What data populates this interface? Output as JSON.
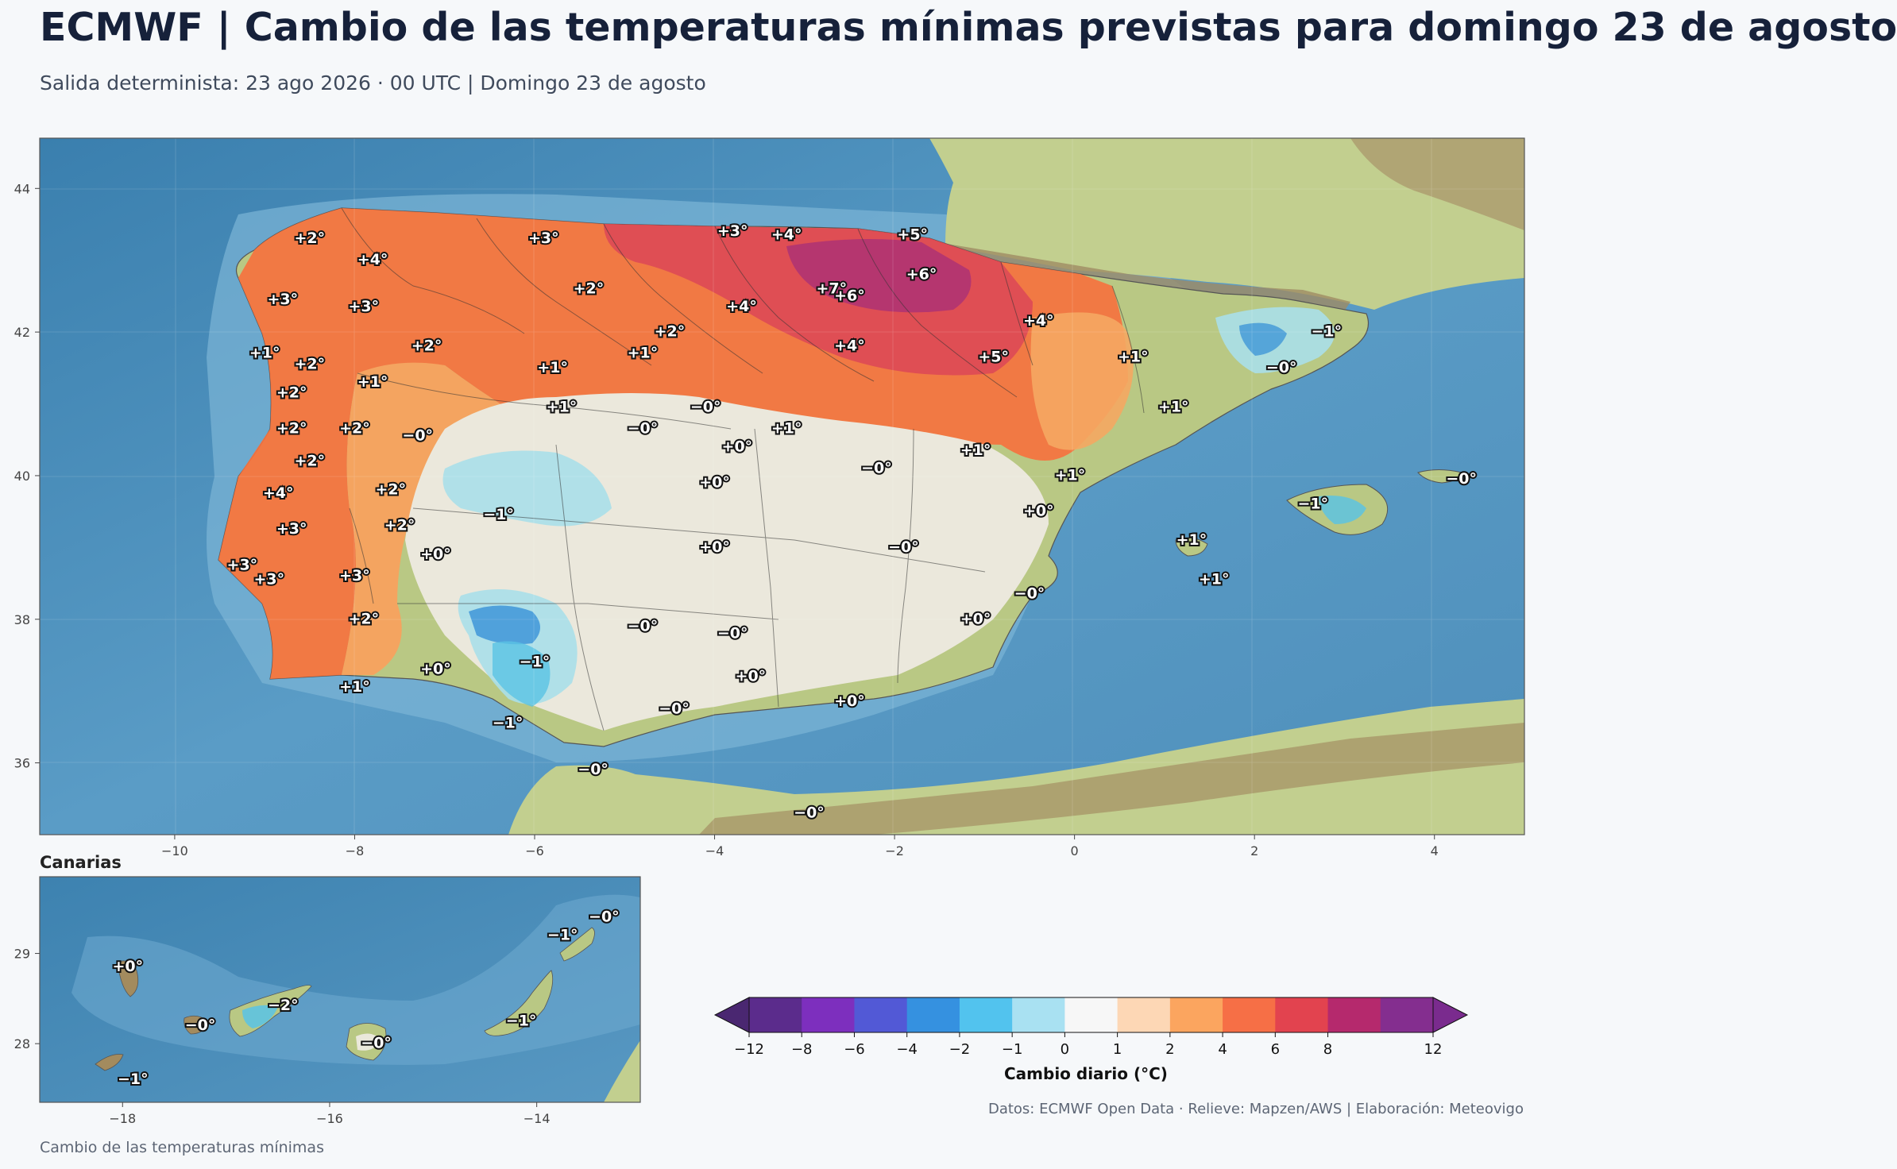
{
  "header": {
    "title": "ECMWF | Cambio de las temperaturas mínimas previstas para domingo 23 de agosto",
    "subtitle": "Salida determinista: 23 ago 2026 · 00 UTC  |  Domingo 23 de agosto"
  },
  "main_map": {
    "lon_range": [
      -11.5,
      5.0
    ],
    "lat_range": [
      35.0,
      44.7
    ],
    "x_ticks": [
      "−10",
      "−8",
      "−6",
      "−4",
      "−2",
      "0",
      "2",
      "4"
    ],
    "x_tick_values": [
      -10,
      -8,
      -6,
      -4,
      -2,
      0,
      2,
      4
    ],
    "y_ticks": [
      "36",
      "38",
      "40",
      "42",
      "44"
    ],
    "y_tick_values": [
      36,
      38,
      40,
      42,
      44
    ],
    "labels": [
      {
        "lon": -8.5,
        "lat": 43.3,
        "text": "+2°"
      },
      {
        "lon": -7.8,
        "lat": 43.0,
        "text": "+4°"
      },
      {
        "lon": -5.9,
        "lat": 43.3,
        "text": "+3°"
      },
      {
        "lon": -3.8,
        "lat": 43.4,
        "text": "+3°"
      },
      {
        "lon": -3.2,
        "lat": 43.35,
        "text": "+4°"
      },
      {
        "lon": -1.8,
        "lat": 43.35,
        "text": "+5°"
      },
      {
        "lon": -5.4,
        "lat": 42.6,
        "text": "+2°"
      },
      {
        "lon": -2.7,
        "lat": 42.6,
        "text": "+7°"
      },
      {
        "lon": -2.5,
        "lat": 42.5,
        "text": "+6°"
      },
      {
        "lon": -1.7,
        "lat": 42.8,
        "text": "+6°"
      },
      {
        "lon": -8.8,
        "lat": 42.45,
        "text": "+3°"
      },
      {
        "lon": -7.9,
        "lat": 42.35,
        "text": "+3°"
      },
      {
        "lon": -3.7,
        "lat": 42.35,
        "text": "+4°"
      },
      {
        "lon": -0.4,
        "lat": 42.15,
        "text": "+4°"
      },
      {
        "lon": -4.5,
        "lat": 42.0,
        "text": "+2°"
      },
      {
        "lon": 2.8,
        "lat": 42.0,
        "text": "−1°"
      },
      {
        "lon": -9.0,
        "lat": 41.7,
        "text": "+1°"
      },
      {
        "lon": -8.5,
        "lat": 41.55,
        "text": "+2°"
      },
      {
        "lon": -7.2,
        "lat": 41.8,
        "text": "+2°"
      },
      {
        "lon": -4.8,
        "lat": 41.7,
        "text": "+1°"
      },
      {
        "lon": -2.5,
        "lat": 41.8,
        "text": "+4°"
      },
      {
        "lon": -0.9,
        "lat": 41.65,
        "text": "+5°"
      },
      {
        "lon": 0.65,
        "lat": 41.65,
        "text": "+1°"
      },
      {
        "lon": 2.3,
        "lat": 41.5,
        "text": "−0°"
      },
      {
        "lon": -5.8,
        "lat": 41.5,
        "text": "+1°"
      },
      {
        "lon": -8.7,
        "lat": 41.15,
        "text": "+2°"
      },
      {
        "lon": -7.8,
        "lat": 41.3,
        "text": "+1°"
      },
      {
        "lon": -5.7,
        "lat": 40.95,
        "text": "+1°"
      },
      {
        "lon": -4.1,
        "lat": 40.95,
        "text": "−0°"
      },
      {
        "lon": 1.1,
        "lat": 40.95,
        "text": "+1°"
      },
      {
        "lon": -8.7,
        "lat": 40.65,
        "text": "+2°"
      },
      {
        "lon": -8.0,
        "lat": 40.65,
        "text": "+2°"
      },
      {
        "lon": -4.8,
        "lat": 40.65,
        "text": "−0°"
      },
      {
        "lon": -3.2,
        "lat": 40.65,
        "text": "+1°"
      },
      {
        "lon": -7.3,
        "lat": 40.55,
        "text": "−0°"
      },
      {
        "lon": -3.75,
        "lat": 40.4,
        "text": "+0°"
      },
      {
        "lon": -1.1,
        "lat": 40.35,
        "text": "+1°"
      },
      {
        "lon": -8.5,
        "lat": 40.2,
        "text": "+2°"
      },
      {
        "lon": -2.2,
        "lat": 40.1,
        "text": "−0°"
      },
      {
        "lon": -0.05,
        "lat": 40.0,
        "text": "+1°"
      },
      {
        "lon": -4.0,
        "lat": 39.9,
        "text": "+0°"
      },
      {
        "lon": -7.6,
        "lat": 39.8,
        "text": "+2°"
      },
      {
        "lon": -8.85,
        "lat": 39.75,
        "text": "+4°"
      },
      {
        "lon": -6.4,
        "lat": 39.45,
        "text": "−1°"
      },
      {
        "lon": -0.4,
        "lat": 39.5,
        "text": "+0°"
      },
      {
        "lon": -7.5,
        "lat": 39.3,
        "text": "+2°"
      },
      {
        "lon": -8.7,
        "lat": 39.25,
        "text": "+3°"
      },
      {
        "lon": -4.0,
        "lat": 39.0,
        "text": "+0°"
      },
      {
        "lon": -1.9,
        "lat": 39.0,
        "text": "−0°"
      },
      {
        "lon": 1.3,
        "lat": 39.1,
        "text": "+1°"
      },
      {
        "lon": -7.1,
        "lat": 38.9,
        "text": "+0°"
      },
      {
        "lon": -9.25,
        "lat": 38.75,
        "text": "+3°"
      },
      {
        "lon": -8.95,
        "lat": 38.55,
        "text": "+3°"
      },
      {
        "lon": -8.0,
        "lat": 38.6,
        "text": "+3°"
      },
      {
        "lon": 1.55,
        "lat": 38.55,
        "text": "+1°"
      },
      {
        "lon": -0.5,
        "lat": 38.35,
        "text": "−0°"
      },
      {
        "lon": -7.9,
        "lat": 38.0,
        "text": "+2°"
      },
      {
        "lon": -1.1,
        "lat": 38.0,
        "text": "+0°"
      },
      {
        "lon": -4.8,
        "lat": 37.9,
        "text": "−0°"
      },
      {
        "lon": -3.8,
        "lat": 37.8,
        "text": "−0°"
      },
      {
        "lon": -6.0,
        "lat": 37.4,
        "text": "−1°"
      },
      {
        "lon": -7.1,
        "lat": 37.3,
        "text": "+0°"
      },
      {
        "lon": -3.6,
        "lat": 37.2,
        "text": "+0°"
      },
      {
        "lon": -8.0,
        "lat": 37.05,
        "text": "+1°"
      },
      {
        "lon": -2.5,
        "lat": 36.85,
        "text": "+0°"
      },
      {
        "lon": -4.45,
        "lat": 36.75,
        "text": "−0°"
      },
      {
        "lon": -6.3,
        "lat": 36.55,
        "text": "−1°"
      },
      {
        "lon": -5.35,
        "lat": 35.9,
        "text": "−0°"
      },
      {
        "lon": -2.95,
        "lat": 35.3,
        "text": "−0°"
      },
      {
        "lon": 2.65,
        "lat": 39.6,
        "text": "−1°"
      },
      {
        "lon": 4.3,
        "lat": 39.95,
        "text": "−0°"
      }
    ]
  },
  "canarias": {
    "title": "Canarias",
    "lon_range": [
      -18.8,
      -13.0
    ],
    "lat_range": [
      27.35,
      29.85
    ],
    "x_ticks": [
      "−18",
      "−16",
      "−14"
    ],
    "x_tick_values": [
      -18,
      -16,
      -14
    ],
    "y_ticks": [
      "28",
      "29"
    ],
    "y_tick_values": [
      28,
      29
    ],
    "labels": [
      {
        "lon": -17.95,
        "lat": 28.85,
        "text": "+0°"
      },
      {
        "lon": -17.25,
        "lat": 28.2,
        "text": "−0°"
      },
      {
        "lon": -16.45,
        "lat": 28.42,
        "text": "−2°"
      },
      {
        "lon": -15.55,
        "lat": 28.0,
        "text": "−0°"
      },
      {
        "lon": -14.15,
        "lat": 28.25,
        "text": "−1°"
      },
      {
        "lon": -13.75,
        "lat": 29.2,
        "text": "−1°"
      },
      {
        "lon": -13.35,
        "lat": 29.4,
        "text": "−0°"
      },
      {
        "lon": -17.9,
        "lat": 27.6,
        "text": "−1°"
      }
    ]
  },
  "colorbar": {
    "label": "Cambio diario (°C)",
    "bounds": [
      -12,
      -8,
      -6,
      -4,
      -2,
      -1,
      0,
      1,
      2,
      4,
      6,
      8,
      12
    ],
    "tick_labels": [
      "−12",
      "−8",
      "−6",
      "−4",
      "−2",
      "−1",
      "0",
      "1",
      "2",
      "4",
      "6",
      "8",
      "12"
    ],
    "colors": [
      "#5b2c8c",
      "#7d2fbe",
      "#5259d6",
      "#3591e0",
      "#52c3ee",
      "#a9e1f2",
      "#f7f7f7",
      "#fdd7b5",
      "#fba55f",
      "#f66f46",
      "#e2434f",
      "#b5296d",
      "#842e8f"
    ],
    "under_color": "#4a2771",
    "over_color": "#7a2b8e"
  },
  "credits": "Datos: ECMWF Open Data · Relieve: Mapzen/AWS  |  Elaboración: Meteovigo",
  "footer": "Cambio de las temperaturas mínimas"
}
